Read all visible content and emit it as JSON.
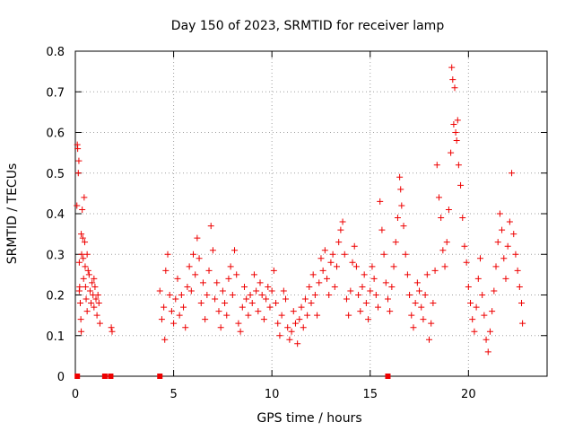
{
  "chart_data": {
    "type": "scatter",
    "title": "Day 150 of 2023, SRMTID for receiver lamp",
    "xlabel": "GPS time / hours",
    "ylabel": "SRMTID / TECUs",
    "xlim": [
      0,
      24
    ],
    "ylim": [
      0,
      0.8
    ],
    "xticks": [
      0,
      5,
      10,
      15,
      20
    ],
    "xtick_labels": [
      "0",
      "5",
      "10",
      "15",
      "20"
    ],
    "yticks": [
      0,
      0.1,
      0.2,
      0.3,
      0.4,
      0.5,
      0.6,
      0.7,
      0.8
    ],
    "ytick_labels": [
      "0",
      "0.1",
      "0.2",
      "0.3",
      "0.4",
      "0.5",
      "0.6",
      "0.7",
      "0.8"
    ],
    "grid": true,
    "marker": "plus",
    "color": "#ee0000",
    "zero_flags_x": [
      0.1,
      1.5,
      1.8,
      4.3,
      15.9
    ],
    "segments": [
      {
        "x_start": 0.05,
        "x_end": 1.3,
        "points": [
          [
            0.08,
            0.42
          ],
          [
            0.1,
            0.57
          ],
          [
            0.12,
            0.56
          ],
          [
            0.15,
            0.5
          ],
          [
            0.18,
            0.53
          ],
          [
            0.2,
            0.28
          ],
          [
            0.22,
            0.22
          ],
          [
            0.25,
            0.18
          ],
          [
            0.28,
            0.14
          ],
          [
            0.3,
            0.35
          ],
          [
            0.32,
            0.3
          ],
          [
            0.35,
            0.41
          ],
          [
            0.38,
            0.34
          ],
          [
            0.4,
            0.29
          ],
          [
            0.42,
            0.24
          ],
          [
            0.45,
            0.44
          ],
          [
            0.48,
            0.33
          ],
          [
            0.5,
            0.27
          ],
          [
            0.52,
            0.22
          ],
          [
            0.55,
            0.19
          ],
          [
            0.6,
            0.3
          ],
          [
            0.65,
            0.26
          ],
          [
            0.7,
            0.25
          ],
          [
            0.75,
            0.21
          ],
          [
            0.8,
            0.18
          ],
          [
            0.85,
            0.23
          ],
          [
            0.9,
            0.2
          ],
          [
            0.95,
            0.17
          ],
          [
            1.0,
            0.22
          ],
          [
            1.05,
            0.19
          ],
          [
            1.1,
            0.15
          ],
          [
            1.15,
            0.2
          ],
          [
            1.2,
            0.18
          ],
          [
            1.25,
            0.13
          ],
          [
            0.3,
            0.11
          ],
          [
            0.6,
            0.16
          ],
          [
            0.95,
            0.24
          ],
          [
            0.2,
            0.21
          ]
        ]
      },
      {
        "x_start": 1.8,
        "x_end": 1.9,
        "points": [
          [
            1.83,
            0.12
          ],
          [
            1.87,
            0.11
          ]
        ]
      },
      {
        "x_start": 4.2,
        "x_end": 22.8,
        "points": [
          [
            4.3,
            0.21
          ],
          [
            4.4,
            0.14
          ],
          [
            4.5,
            0.17
          ],
          [
            4.55,
            0.09
          ],
          [
            4.6,
            0.26
          ],
          [
            4.7,
            0.3
          ],
          [
            4.8,
            0.2
          ],
          [
            4.9,
            0.16
          ],
          [
            5.0,
            0.13
          ],
          [
            5.1,
            0.19
          ],
          [
            5.2,
            0.24
          ],
          [
            5.3,
            0.15
          ],
          [
            5.4,
            0.2
          ],
          [
            5.5,
            0.17
          ],
          [
            5.6,
            0.12
          ],
          [
            5.7,
            0.22
          ],
          [
            5.8,
            0.27
          ],
          [
            5.9,
            0.21
          ],
          [
            6.0,
            0.3
          ],
          [
            6.1,
            0.25
          ],
          [
            6.2,
            0.34
          ],
          [
            6.3,
            0.29
          ],
          [
            6.4,
            0.18
          ],
          [
            6.5,
            0.23
          ],
          [
            6.6,
            0.14
          ],
          [
            6.7,
            0.2
          ],
          [
            6.8,
            0.26
          ],
          [
            6.9,
            0.37
          ],
          [
            7.0,
            0.31
          ],
          [
            7.1,
            0.19
          ],
          [
            7.2,
            0.23
          ],
          [
            7.3,
            0.16
          ],
          [
            7.4,
            0.12
          ],
          [
            7.5,
            0.21
          ],
          [
            7.6,
            0.18
          ],
          [
            7.7,
            0.15
          ],
          [
            7.8,
            0.24
          ],
          [
            7.9,
            0.27
          ],
          [
            8.0,
            0.2
          ],
          [
            8.1,
            0.31
          ],
          [
            8.2,
            0.25
          ],
          [
            8.3,
            0.13
          ],
          [
            8.4,
            0.11
          ],
          [
            8.5,
            0.17
          ],
          [
            8.6,
            0.22
          ],
          [
            8.7,
            0.19
          ],
          [
            8.8,
            0.15
          ],
          [
            8.9,
            0.2
          ],
          [
            9.0,
            0.18
          ],
          [
            9.1,
            0.25
          ],
          [
            9.2,
            0.21
          ],
          [
            9.3,
            0.16
          ],
          [
            9.4,
            0.23
          ],
          [
            9.5,
            0.2
          ],
          [
            9.6,
            0.14
          ],
          [
            9.7,
            0.19
          ],
          [
            9.8,
            0.22
          ],
          [
            9.9,
            0.17
          ],
          [
            10.0,
            0.21
          ],
          [
            10.1,
            0.26
          ],
          [
            10.2,
            0.18
          ],
          [
            10.3,
            0.13
          ],
          [
            10.4,
            0.1
          ],
          [
            10.5,
            0.15
          ],
          [
            10.6,
            0.21
          ],
          [
            10.7,
            0.19
          ],
          [
            10.8,
            0.12
          ],
          [
            10.9,
            0.09
          ],
          [
            11.0,
            0.11
          ],
          [
            11.1,
            0.16
          ],
          [
            11.2,
            0.13
          ],
          [
            11.3,
            0.08
          ],
          [
            11.4,
            0.14
          ],
          [
            11.5,
            0.17
          ],
          [
            11.6,
            0.12
          ],
          [
            11.7,
            0.19
          ],
          [
            11.8,
            0.15
          ],
          [
            11.9,
            0.22
          ],
          [
            12.0,
            0.18
          ],
          [
            12.1,
            0.25
          ],
          [
            12.2,
            0.2
          ],
          [
            12.3,
            0.15
          ],
          [
            12.4,
            0.23
          ],
          [
            12.5,
            0.29
          ],
          [
            12.6,
            0.26
          ],
          [
            12.7,
            0.31
          ],
          [
            12.8,
            0.24
          ],
          [
            12.9,
            0.2
          ],
          [
            13.0,
            0.28
          ],
          [
            13.1,
            0.3
          ],
          [
            13.2,
            0.22
          ],
          [
            13.3,
            0.27
          ],
          [
            13.4,
            0.33
          ],
          [
            13.5,
            0.36
          ],
          [
            13.6,
            0.38
          ],
          [
            13.7,
            0.3
          ],
          [
            13.8,
            0.19
          ],
          [
            13.9,
            0.15
          ],
          [
            14.0,
            0.21
          ],
          [
            14.1,
            0.28
          ],
          [
            14.2,
            0.32
          ],
          [
            14.3,
            0.27
          ],
          [
            14.4,
            0.2
          ],
          [
            14.5,
            0.16
          ],
          [
            14.6,
            0.22
          ],
          [
            14.7,
            0.25
          ],
          [
            14.8,
            0.18
          ],
          [
            14.9,
            0.14
          ],
          [
            15.0,
            0.21
          ],
          [
            15.1,
            0.27
          ],
          [
            15.2,
            0.24
          ],
          [
            15.3,
            0.2
          ],
          [
            15.4,
            0.17
          ],
          [
            15.5,
            0.43
          ],
          [
            15.6,
            0.36
          ],
          [
            15.7,
            0.3
          ],
          [
            15.8,
            0.23
          ],
          [
            15.9,
            0.19
          ],
          [
            16.0,
            0.16
          ],
          [
            16.1,
            0.22
          ],
          [
            16.2,
            0.27
          ],
          [
            16.3,
            0.33
          ],
          [
            16.4,
            0.39
          ],
          [
            16.5,
            0.49
          ],
          [
            16.55,
            0.46
          ],
          [
            16.6,
            0.42
          ],
          [
            16.7,
            0.37
          ],
          [
            16.8,
            0.3
          ],
          [
            16.9,
            0.25
          ],
          [
            17.0,
            0.2
          ],
          [
            17.1,
            0.15
          ],
          [
            17.2,
            0.12
          ],
          [
            17.3,
            0.18
          ],
          [
            17.4,
            0.23
          ],
          [
            17.5,
            0.21
          ],
          [
            17.6,
            0.17
          ],
          [
            17.7,
            0.14
          ],
          [
            17.8,
            0.2
          ],
          [
            17.9,
            0.25
          ],
          [
            18.0,
            0.09
          ],
          [
            18.1,
            0.13
          ],
          [
            18.2,
            0.18
          ],
          [
            18.3,
            0.26
          ],
          [
            18.4,
            0.52
          ],
          [
            18.5,
            0.44
          ],
          [
            18.6,
            0.39
          ],
          [
            18.7,
            0.31
          ],
          [
            18.8,
            0.27
          ],
          [
            18.9,
            0.33
          ],
          [
            19.0,
            0.41
          ],
          [
            19.1,
            0.55
          ],
          [
            19.15,
            0.76
          ],
          [
            19.2,
            0.73
          ],
          [
            19.25,
            0.62
          ],
          [
            19.3,
            0.71
          ],
          [
            19.35,
            0.6
          ],
          [
            19.4,
            0.58
          ],
          [
            19.45,
            0.63
          ],
          [
            19.5,
            0.52
          ],
          [
            19.6,
            0.47
          ],
          [
            19.7,
            0.39
          ],
          [
            19.8,
            0.32
          ],
          [
            19.9,
            0.28
          ],
          [
            20.0,
            0.22
          ],
          [
            20.1,
            0.18
          ],
          [
            20.2,
            0.14
          ],
          [
            20.3,
            0.11
          ],
          [
            20.4,
            0.17
          ],
          [
            20.5,
            0.24
          ],
          [
            20.6,
            0.29
          ],
          [
            20.7,
            0.2
          ],
          [
            20.8,
            0.15
          ],
          [
            20.9,
            0.09
          ],
          [
            21.0,
            0.06
          ],
          [
            21.1,
            0.11
          ],
          [
            21.2,
            0.16
          ],
          [
            21.3,
            0.21
          ],
          [
            21.4,
            0.27
          ],
          [
            21.5,
            0.33
          ],
          [
            21.6,
            0.4
          ],
          [
            21.7,
            0.36
          ],
          [
            21.8,
            0.29
          ],
          [
            21.9,
            0.24
          ],
          [
            22.0,
            0.32
          ],
          [
            22.1,
            0.38
          ],
          [
            22.2,
            0.5
          ],
          [
            22.3,
            0.35
          ],
          [
            22.4,
            0.3
          ],
          [
            22.5,
            0.26
          ],
          [
            22.6,
            0.22
          ],
          [
            22.7,
            0.18
          ],
          [
            22.75,
            0.13
          ]
        ]
      }
    ]
  }
}
